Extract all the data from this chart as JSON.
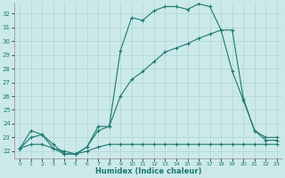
{
  "title": "",
  "xlabel": "Humidex (Indice chaleur)",
  "bg_color": "#cce9ea",
  "grid_color": "#aed4d5",
  "line_color": "#1a7a6e",
  "xlim": [
    -0.5,
    23.5
  ],
  "ylim": [
    21.5,
    32.8
  ],
  "xticks": [
    0,
    1,
    2,
    3,
    4,
    5,
    6,
    7,
    8,
    9,
    10,
    11,
    12,
    13,
    14,
    15,
    16,
    17,
    18,
    19,
    20,
    21,
    22,
    23
  ],
  "yticks": [
    22,
    23,
    24,
    25,
    26,
    27,
    28,
    29,
    30,
    31,
    32
  ],
  "line1_x": [
    0,
    1,
    2,
    3,
    4,
    5,
    6,
    7,
    8,
    9,
    10,
    11,
    12,
    13,
    14,
    15,
    16,
    17,
    18,
    19,
    20,
    21,
    22,
    23
  ],
  "line1_y": [
    22.2,
    23.5,
    23.2,
    22.2,
    21.8,
    21.8,
    22.3,
    23.5,
    23.8,
    29.3,
    31.7,
    31.5,
    32.2,
    32.5,
    32.5,
    32.3,
    32.7,
    32.5,
    30.8,
    30.8,
    25.8,
    23.5,
    23.0,
    23.0
  ],
  "line2_x": [
    0,
    1,
    2,
    3,
    4,
    5,
    6,
    7,
    8,
    9,
    10,
    11,
    12,
    13,
    14,
    15,
    16,
    17,
    18,
    19,
    20,
    21,
    22,
    23
  ],
  "line2_y": [
    22.2,
    23.0,
    23.2,
    22.5,
    21.8,
    21.8,
    22.3,
    23.8,
    23.8,
    26.0,
    27.2,
    27.8,
    28.5,
    29.2,
    29.5,
    29.8,
    30.2,
    30.5,
    30.8,
    27.8,
    25.7,
    23.5,
    22.8,
    22.8
  ],
  "line3_x": [
    0,
    1,
    2,
    3,
    4,
    5,
    6,
    7,
    8,
    9,
    10,
    11,
    12,
    13,
    14,
    15,
    16,
    17,
    18,
    19,
    20,
    21,
    22,
    23
  ],
  "line3_y": [
    22.2,
    22.5,
    22.5,
    22.2,
    22.0,
    21.8,
    22.0,
    22.3,
    22.5,
    22.5,
    22.5,
    22.5,
    22.5,
    22.5,
    22.5,
    22.5,
    22.5,
    22.5,
    22.5,
    22.5,
    22.5,
    22.5,
    22.5,
    22.5
  ]
}
